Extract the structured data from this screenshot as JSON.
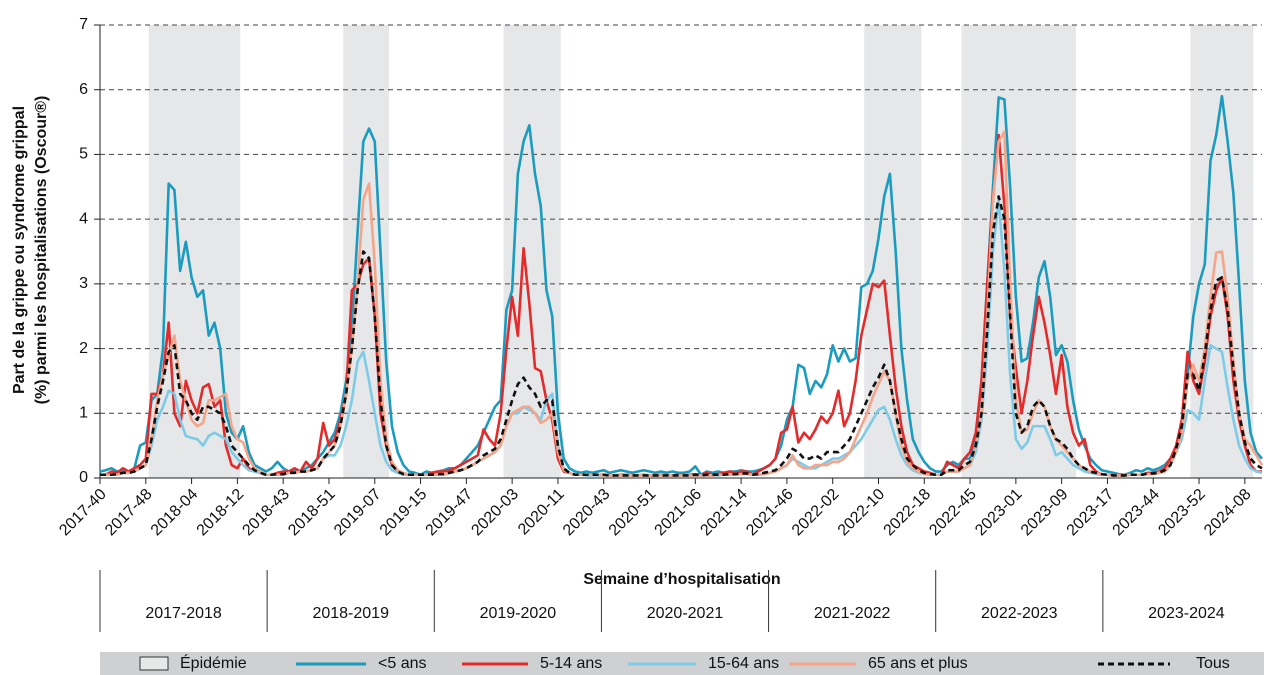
{
  "chart_data": {
    "type": "line",
    "y_label": [
      "Part de la grippe ou syndrome grippal",
      "(%) parmi les hospitalisations (Oscour®)"
    ],
    "x_label": "Semaine d’hospitalisation",
    "seasons": [
      "2017-2018",
      "2018-2019",
      "2019-2020",
      "2020-2021",
      "2021-2022",
      "2022-2023",
      "2023-2024"
    ],
    "ylim": [
      0,
      7
    ],
    "yticks": [
      0,
      1,
      2,
      3,
      4,
      5,
      6,
      7
    ],
    "grid": true,
    "legend": "bottom",
    "epidemic": {
      "name": "Épidémie",
      "color": "#e6e7e8",
      "periods": [
        [
          9,
          24
        ],
        [
          43,
          50
        ],
        [
          71,
          80
        ],
        [
          134,
          143
        ],
        [
          151,
          170
        ],
        [
          191,
          201
        ]
      ]
    },
    "categories": [
      "2017-40",
      null,
      null,
      null,
      null,
      null,
      null,
      null,
      "2017-48",
      null,
      null,
      null,
      null,
      null,
      null,
      null,
      "2018-04",
      null,
      null,
      null,
      null,
      null,
      null,
      null,
      "2018-12",
      null,
      null,
      null,
      null,
      null,
      null,
      null,
      "2018-43",
      null,
      null,
      null,
      null,
      null,
      null,
      null,
      "2018-51",
      null,
      null,
      null,
      null,
      null,
      null,
      null,
      "2019-07",
      null,
      null,
      null,
      null,
      null,
      null,
      null,
      "2019-15",
      null,
      null,
      null,
      null,
      null,
      null,
      null,
      "2019-47",
      null,
      null,
      null,
      null,
      null,
      null,
      null,
      "2020-03",
      null,
      null,
      null,
      null,
      null,
      null,
      null,
      "2020-11",
      null,
      null,
      null,
      null,
      null,
      null,
      null,
      "2020-43",
      null,
      null,
      null,
      null,
      null,
      null,
      null,
      "2020-51",
      null,
      null,
      null,
      null,
      null,
      null,
      null,
      "2021-06",
      null,
      null,
      null,
      null,
      null,
      null,
      null,
      "2021-14",
      null,
      null,
      null,
      null,
      null,
      null,
      null,
      "2021-46",
      null,
      null,
      null,
      null,
      null,
      null,
      null,
      "2022-02",
      null,
      null,
      null,
      null,
      null,
      null,
      null,
      "2022-10",
      null,
      null,
      null,
      null,
      null,
      null,
      null,
      "2022-18",
      null,
      null,
      null,
      null,
      null,
      null,
      null,
      "2022-45",
      null,
      null,
      null,
      null,
      null,
      null,
      null,
      "2023-01",
      null,
      null,
      null,
      null,
      null,
      null,
      null,
      "2023-09",
      null,
      null,
      null,
      null,
      null,
      null,
      null,
      "2023-17",
      null,
      null,
      null,
      null,
      null,
      null,
      null,
      "2023-44",
      null,
      null,
      null,
      null,
      null,
      null,
      null,
      "2023-52",
      null,
      null,
      null,
      null,
      null,
      null,
      null,
      "2024-08",
      null,
      null,
      null
    ],
    "series": [
      {
        "name": "<5 ans",
        "color": "#1a9bc0",
        "dashed": false,
        "values": [
          0.1,
          0.12,
          0.15,
          0.1,
          0.12,
          0.1,
          0.15,
          0.5,
          0.55,
          1.2,
          1.3,
          2.0,
          4.55,
          4.45,
          3.2,
          3.65,
          3.1,
          2.8,
          2.9,
          2.2,
          2.4,
          2.0,
          1.0,
          0.7,
          0.6,
          0.8,
          0.4,
          0.2,
          0.15,
          0.1,
          0.15,
          0.25,
          0.15,
          0.1,
          0.12,
          0.1,
          0.15,
          0.2,
          0.3,
          0.4,
          0.55,
          0.7,
          1.0,
          1.5,
          2.3,
          3.8,
          5.2,
          5.4,
          5.2,
          3.5,
          1.8,
          0.8,
          0.4,
          0.2,
          0.1,
          0.08,
          0.05,
          0.1,
          0.08,
          0.1,
          0.12,
          0.15,
          0.15,
          0.2,
          0.3,
          0.4,
          0.5,
          0.7,
          0.9,
          1.1,
          1.2,
          2.6,
          2.9,
          4.7,
          5.2,
          5.45,
          4.7,
          4.2,
          2.9,
          2.5,
          1.0,
          0.3,
          0.15,
          0.1,
          0.08,
          0.1,
          0.08,
          0.1,
          0.12,
          0.08,
          0.1,
          0.12,
          0.1,
          0.08,
          0.1,
          0.12,
          0.1,
          0.08,
          0.1,
          0.08,
          0.1,
          0.08,
          0.08,
          0.1,
          0.18,
          0.05,
          0.1,
          0.08,
          0.1,
          0.08,
          0.1,
          0.1,
          0.12,
          0.1,
          0.1,
          0.12,
          0.15,
          0.2,
          0.3,
          0.5,
          0.9,
          1.1,
          1.75,
          1.7,
          1.3,
          1.5,
          1.4,
          1.6,
          2.05,
          1.8,
          2.0,
          1.8,
          1.85,
          2.95,
          3.0,
          3.2,
          3.7,
          4.35,
          4.7,
          3.5,
          2.0,
          1.2,
          0.6,
          0.4,
          0.25,
          0.15,
          0.1,
          0.1,
          0.2,
          0.25,
          0.2,
          0.3,
          0.3,
          0.6,
          1.5,
          3.0,
          4.5,
          5.88,
          5.85,
          4.5,
          2.8,
          1.8,
          1.85,
          2.4,
          3.1,
          3.35,
          2.8,
          1.9,
          2.05,
          1.8,
          1.2,
          0.75,
          0.5,
          0.3,
          0.2,
          0.12,
          0.1,
          0.08,
          0.06,
          0.05,
          0.08,
          0.12,
          0.1,
          0.15,
          0.12,
          0.15,
          0.2,
          0.3,
          0.4,
          0.7,
          1.6,
          2.5,
          3.0,
          3.3,
          4.9,
          5.3,
          5.9,
          5.2,
          4.4,
          3.0,
          1.5,
          0.7,
          0.4,
          0.3
        ]
      },
      {
        "name": "5-14 ans",
        "color": "#e32b2b",
        "dashed": false,
        "values": [
          0.05,
          0.05,
          0.1,
          0.08,
          0.15,
          0.1,
          0.15,
          0.2,
          0.3,
          1.3,
          1.3,
          1.6,
          2.4,
          1.0,
          0.8,
          1.5,
          1.2,
          1.0,
          1.4,
          1.45,
          1.1,
          1.2,
          0.5,
          0.2,
          0.15,
          0.3,
          0.15,
          0.1,
          0.08,
          0.05,
          0.05,
          0.08,
          0.1,
          0.1,
          0.15,
          0.1,
          0.25,
          0.15,
          0.3,
          0.85,
          0.5,
          0.6,
          0.9,
          1.3,
          2.9,
          3.0,
          3.3,
          3.4,
          2.5,
          1.0,
          0.5,
          0.2,
          0.1,
          0.05,
          0.05,
          0.05,
          0.05,
          0.05,
          0.08,
          0.1,
          0.1,
          0.12,
          0.15,
          0.2,
          0.25,
          0.3,
          0.35,
          0.75,
          0.6,
          0.5,
          1.0,
          2.0,
          2.8,
          2.2,
          3.55,
          2.7,
          1.7,
          1.65,
          1.2,
          0.9,
          0.3,
          0.1,
          0.08,
          0.05,
          0.05,
          0.05,
          0.05,
          0.05,
          0.05,
          0.04,
          0.04,
          0.05,
          0.05,
          0.04,
          0.04,
          0.05,
          0.04,
          0.04,
          0.05,
          0.04,
          0.04,
          0.05,
          0.04,
          0.05,
          0.06,
          0.05,
          0.08,
          0.05,
          0.06,
          0.08,
          0.1,
          0.08,
          0.1,
          0.1,
          0.05,
          0.1,
          0.15,
          0.2,
          0.3,
          0.7,
          0.75,
          1.1,
          0.55,
          0.7,
          0.6,
          0.75,
          0.95,
          0.85,
          1.0,
          1.35,
          0.8,
          1.0,
          1.5,
          2.2,
          2.6,
          3.0,
          2.95,
          3.05,
          2.2,
          1.4,
          0.8,
          0.4,
          0.2,
          0.15,
          0.1,
          0.08,
          0.05,
          0.05,
          0.25,
          0.2,
          0.15,
          0.3,
          0.4,
          0.7,
          1.5,
          3.0,
          4.3,
          5.3,
          4.2,
          2.5,
          1.7,
          1.0,
          1.5,
          2.2,
          2.8,
          2.4,
          1.9,
          1.3,
          1.9,
          1.1,
          0.7,
          0.5,
          0.6,
          0.2,
          0.1,
          0.05,
          0.05,
          0.04,
          0.04,
          0.04,
          0.05,
          0.05,
          0.05,
          0.08,
          0.08,
          0.1,
          0.15,
          0.3,
          0.5,
          0.9,
          1.95,
          1.5,
          1.3,
          1.8,
          2.5,
          2.9,
          3.1,
          2.5,
          1.5,
          0.9,
          0.5,
          0.2,
          0.1,
          0.1
        ]
      },
      {
        "name": "15-64 ans",
        "color": "#7ecbe8",
        "dashed": false,
        "values": [
          0.05,
          0.05,
          0.05,
          0.05,
          0.08,
          0.08,
          0.1,
          0.15,
          0.2,
          0.5,
          0.9,
          1.1,
          1.35,
          1.3,
          0.9,
          0.65,
          0.62,
          0.6,
          0.5,
          0.65,
          0.7,
          0.65,
          0.6,
          0.4,
          0.3,
          0.2,
          0.12,
          0.1,
          0.08,
          0.05,
          0.05,
          0.05,
          0.05,
          0.08,
          0.08,
          0.1,
          0.1,
          0.12,
          0.15,
          0.3,
          0.35,
          0.35,
          0.5,
          0.8,
          1.2,
          1.8,
          1.95,
          1.5,
          1.0,
          0.5,
          0.25,
          0.12,
          0.08,
          0.05,
          0.05,
          0.05,
          0.05,
          0.05,
          0.05,
          0.05,
          0.05,
          0.08,
          0.1,
          0.12,
          0.15,
          0.2,
          0.25,
          0.3,
          0.35,
          0.4,
          0.5,
          0.8,
          1.0,
          1.0,
          1.1,
          1.05,
          1.0,
          0.9,
          1.2,
          1.3,
          0.5,
          0.15,
          0.08,
          0.05,
          0.05,
          0.04,
          0.04,
          0.04,
          0.04,
          0.04,
          0.04,
          0.04,
          0.04,
          0.04,
          0.04,
          0.04,
          0.04,
          0.04,
          0.04,
          0.04,
          0.04,
          0.04,
          0.04,
          0.04,
          0.04,
          0.04,
          0.04,
          0.04,
          0.04,
          0.05,
          0.05,
          0.05,
          0.06,
          0.06,
          0.05,
          0.05,
          0.06,
          0.08,
          0.1,
          0.15,
          0.2,
          0.3,
          0.25,
          0.2,
          0.15,
          0.15,
          0.2,
          0.25,
          0.3,
          0.3,
          0.35,
          0.4,
          0.5,
          0.6,
          0.75,
          0.9,
          1.05,
          1.1,
          0.9,
          0.6,
          0.35,
          0.2,
          0.12,
          0.08,
          0.06,
          0.05,
          0.05,
          0.05,
          0.1,
          0.1,
          0.1,
          0.15,
          0.2,
          0.4,
          0.9,
          2.0,
          3.5,
          4.3,
          3.2,
          1.6,
          0.6,
          0.45,
          0.55,
          0.8,
          0.8,
          0.8,
          0.6,
          0.35,
          0.4,
          0.3,
          0.2,
          0.15,
          0.1,
          0.08,
          0.06,
          0.05,
          0.05,
          0.04,
          0.04,
          0.04,
          0.05,
          0.05,
          0.05,
          0.06,
          0.06,
          0.08,
          0.1,
          0.2,
          0.4,
          0.6,
          1.05,
          1.0,
          0.9,
          1.5,
          2.05,
          2.0,
          1.95,
          1.4,
          0.9,
          0.5,
          0.3,
          0.15,
          0.1,
          0.08
        ]
      },
      {
        "name": "65 ans et plus",
        "color": "#f4a58a",
        "dashed": false,
        "values": [
          0.05,
          0.05,
          0.05,
          0.05,
          0.08,
          0.08,
          0.1,
          0.15,
          0.2,
          0.6,
          1.2,
          1.6,
          1.9,
          2.2,
          1.5,
          1.2,
          0.9,
          0.8,
          0.85,
          1.2,
          1.2,
          1.25,
          1.3,
          0.8,
          0.6,
          0.55,
          0.3,
          0.15,
          0.1,
          0.05,
          0.05,
          0.05,
          0.05,
          0.08,
          0.08,
          0.1,
          0.1,
          0.12,
          0.15,
          0.3,
          0.4,
          0.5,
          0.8,
          1.3,
          2.0,
          3.0,
          4.3,
          4.55,
          3.3,
          1.5,
          0.6,
          0.25,
          0.12,
          0.08,
          0.05,
          0.05,
          0.05,
          0.05,
          0.05,
          0.05,
          0.05,
          0.08,
          0.1,
          0.12,
          0.15,
          0.2,
          0.25,
          0.3,
          0.35,
          0.4,
          0.5,
          0.8,
          1.0,
          1.05,
          1.1,
          1.1,
          1.0,
          0.85,
          0.9,
          1.0,
          0.4,
          0.12,
          0.08,
          0.05,
          0.05,
          0.05,
          0.05,
          0.05,
          0.04,
          0.04,
          0.04,
          0.04,
          0.04,
          0.04,
          0.04,
          0.04,
          0.04,
          0.04,
          0.04,
          0.04,
          0.04,
          0.04,
          0.04,
          0.04,
          0.04,
          0.04,
          0.04,
          0.04,
          0.05,
          0.05,
          0.05,
          0.05,
          0.06,
          0.06,
          0.05,
          0.05,
          0.06,
          0.08,
          0.1,
          0.15,
          0.2,
          0.35,
          0.2,
          0.15,
          0.15,
          0.2,
          0.2,
          0.2,
          0.25,
          0.25,
          0.3,
          0.4,
          0.6,
          0.8,
          1.0,
          1.25,
          1.45,
          1.65,
          1.5,
          1.0,
          0.5,
          0.25,
          0.15,
          0.1,
          0.06,
          0.05,
          0.05,
          0.05,
          0.1,
          0.1,
          0.1,
          0.15,
          0.2,
          0.5,
          1.0,
          2.5,
          4.3,
          5.2,
          5.35,
          3.0,
          1.2,
          0.7,
          0.75,
          1.0,
          1.2,
          1.1,
          0.8,
          0.6,
          0.5,
          0.4,
          0.3,
          0.2,
          0.15,
          0.1,
          0.08,
          0.05,
          0.05,
          0.04,
          0.04,
          0.04,
          0.05,
          0.05,
          0.05,
          0.06,
          0.06,
          0.08,
          0.1,
          0.2,
          0.4,
          0.7,
          1.5,
          1.75,
          1.5,
          2.0,
          2.8,
          3.48,
          3.5,
          2.8,
          1.8,
          1.0,
          0.6,
          0.5,
          0.35,
          0.2
        ]
      },
      {
        "name": "Tous",
        "color": "#111111",
        "dashed": true,
        "values": [
          0.05,
          0.05,
          0.05,
          0.06,
          0.08,
          0.08,
          0.1,
          0.15,
          0.2,
          0.6,
          1.1,
          1.5,
          1.95,
          2.05,
          1.3,
          1.2,
          1.0,
          0.9,
          1.1,
          1.1,
          1.05,
          1.0,
          0.8,
          0.5,
          0.4,
          0.3,
          0.2,
          0.12,
          0.08,
          0.05,
          0.05,
          0.06,
          0.06,
          0.08,
          0.08,
          0.1,
          0.1,
          0.12,
          0.15,
          0.3,
          0.4,
          0.5,
          0.8,
          1.3,
          2.0,
          2.9,
          3.5,
          3.4,
          2.5,
          1.2,
          0.5,
          0.2,
          0.1,
          0.06,
          0.05,
          0.05,
          0.05,
          0.05,
          0.05,
          0.06,
          0.06,
          0.08,
          0.1,
          0.12,
          0.15,
          0.2,
          0.25,
          0.35,
          0.4,
          0.45,
          0.6,
          0.9,
          1.2,
          1.45,
          1.55,
          1.4,
          1.3,
          1.1,
          1.2,
          1.2,
          0.5,
          0.15,
          0.08,
          0.05,
          0.05,
          0.05,
          0.05,
          0.05,
          0.05,
          0.04,
          0.04,
          0.04,
          0.04,
          0.04,
          0.04,
          0.04,
          0.04,
          0.04,
          0.04,
          0.04,
          0.04,
          0.04,
          0.04,
          0.04,
          0.05,
          0.04,
          0.05,
          0.05,
          0.05,
          0.05,
          0.06,
          0.06,
          0.07,
          0.07,
          0.05,
          0.06,
          0.08,
          0.1,
          0.12,
          0.2,
          0.3,
          0.45,
          0.4,
          0.3,
          0.3,
          0.35,
          0.3,
          0.4,
          0.4,
          0.4,
          0.5,
          0.6,
          0.8,
          1.0,
          1.2,
          1.4,
          1.55,
          1.75,
          1.5,
          1.0,
          0.6,
          0.3,
          0.2,
          0.12,
          0.08,
          0.06,
          0.05,
          0.05,
          0.12,
          0.12,
          0.12,
          0.2,
          0.25,
          0.5,
          1.0,
          2.3,
          3.8,
          4.35,
          4.0,
          2.5,
          1.0,
          0.7,
          0.8,
          1.1,
          1.2,
          1.1,
          0.8,
          0.6,
          0.55,
          0.45,
          0.3,
          0.2,
          0.15,
          0.1,
          0.08,
          0.06,
          0.05,
          0.04,
          0.04,
          0.04,
          0.05,
          0.05,
          0.05,
          0.07,
          0.07,
          0.08,
          0.12,
          0.2,
          0.45,
          0.8,
          1.6,
          1.6,
          1.35,
          1.9,
          2.6,
          3.05,
          3.1,
          2.6,
          1.7,
          1.0,
          0.55,
          0.3,
          0.2,
          0.15
        ]
      }
    ]
  }
}
